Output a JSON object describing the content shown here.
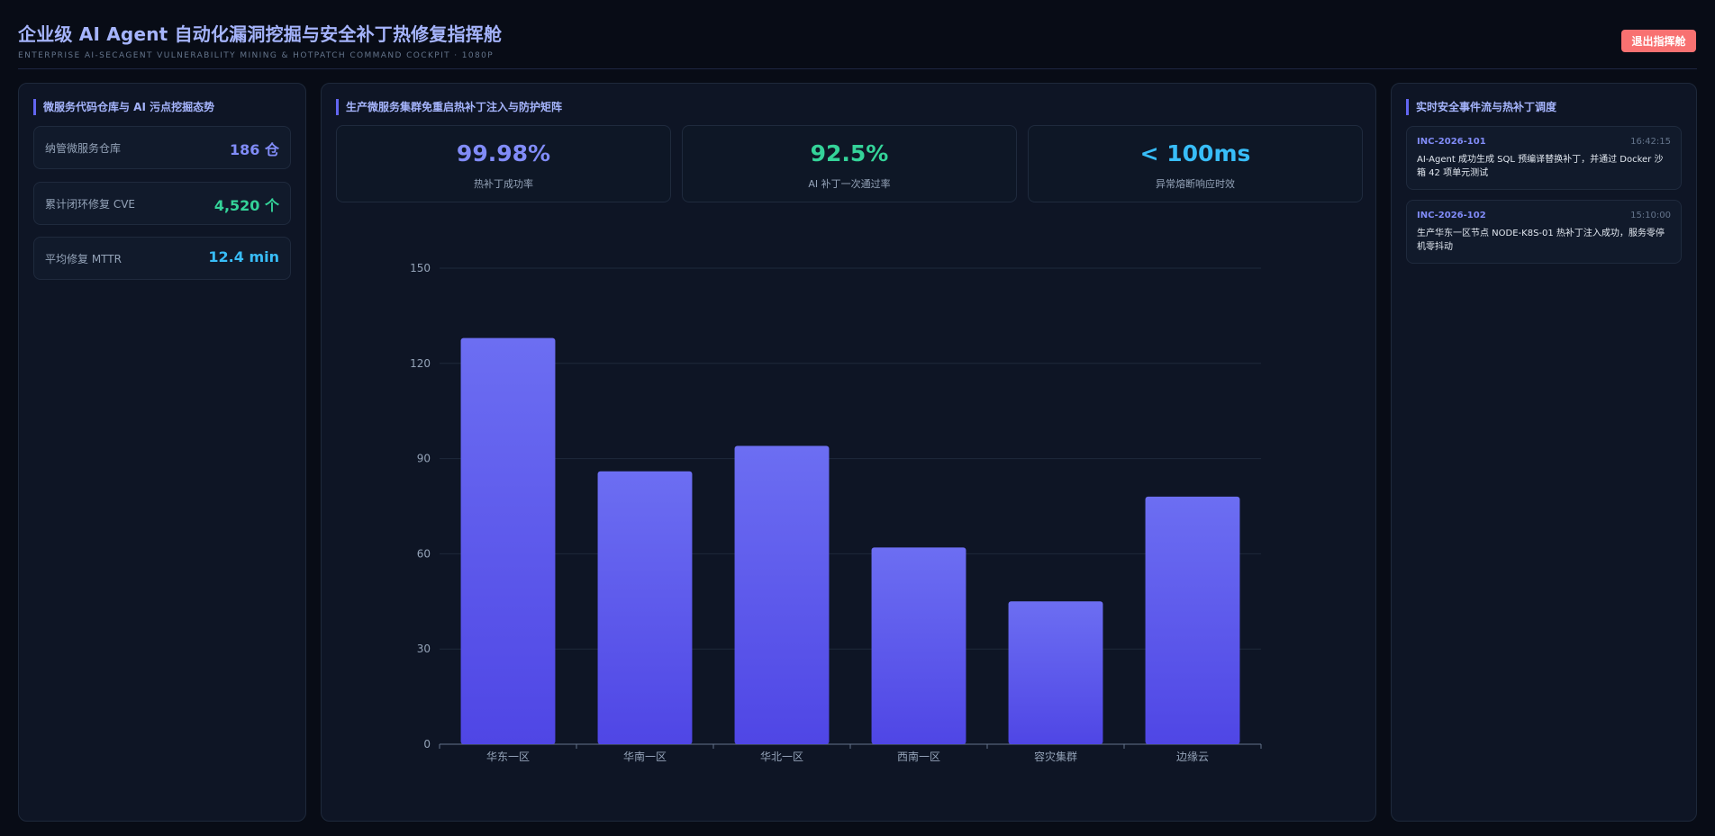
{
  "header": {
    "title": "企业级 AI Agent 自动化漏洞挖掘与安全补丁热修复指挥舱",
    "subtitle": "ENTERPRISE AI-SECAGENT VULNERABILITY MINING & HOTPATCH COMMAND COCKPIT · 1080P",
    "exit_label": "退出指挥舱"
  },
  "left_panel": {
    "title": "微服务代码仓库与 AI 污点挖掘态势",
    "stats": [
      {
        "label": "纳管微服务仓库",
        "value": "186 仓",
        "color": "#818cf8"
      },
      {
        "label": "累计闭环修复 CVE",
        "value": "4,520 个",
        "color": "#34d399"
      },
      {
        "label": "平均修复 MTTR",
        "value": "12.4 min",
        "color": "#38bdf8"
      }
    ]
  },
  "center_panel": {
    "title": "生产微服务集群免重启热补丁注入与防护矩阵",
    "kpis": [
      {
        "value": "99.98%",
        "label": "热补丁成功率",
        "color": "#818cf8"
      },
      {
        "value": "92.5%",
        "label": "AI 补丁一次通过率",
        "color": "#34d399"
      },
      {
        "value": "< 100ms",
        "label": "异常熔断响应时效",
        "color": "#38bdf8"
      }
    ]
  },
  "chart_data": {
    "type": "bar",
    "categories": [
      "华东一区",
      "华南一区",
      "华北一区",
      "西南一区",
      "容灾集群",
      "边缘云"
    ],
    "values": [
      128,
      86,
      94,
      62,
      45,
      78
    ],
    "yticks": [
      0,
      30,
      60,
      90,
      120,
      150
    ],
    "ylim": [
      0,
      150
    ],
    "grid": true,
    "bar_color_top": "#6c6ef2",
    "bar_color_bottom": "#4f46e5"
  },
  "right_panel": {
    "title": "实时安全事件流与热补丁调度",
    "events": [
      {
        "id": "INC-2026-101",
        "time": "16:42:15",
        "text": "AI-Agent 成功生成 SQL 预编译替换补丁，并通过 Docker 沙箱 42 项单元测试"
      },
      {
        "id": "INC-2026-102",
        "time": "15:10:00",
        "text": "生产华东一区节点 NODE-K8S-01 热补丁注入成功，服务零停机零抖动"
      }
    ]
  }
}
